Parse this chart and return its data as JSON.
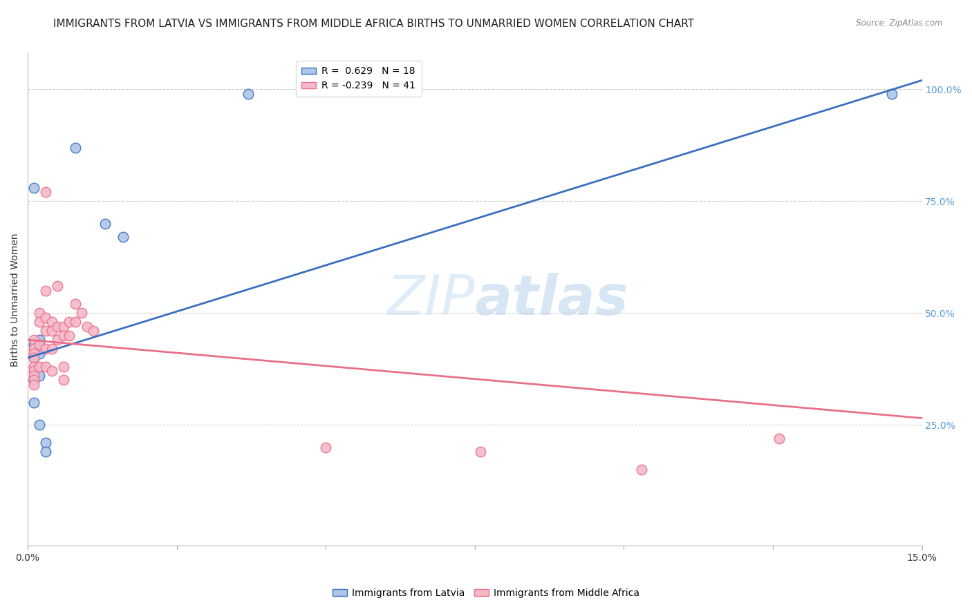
{
  "title": "IMMIGRANTS FROM LATVIA VS IMMIGRANTS FROM MIDDLE AFRICA BIRTHS TO UNMARRIED WOMEN CORRELATION CHART",
  "source": "Source: ZipAtlas.com",
  "ylabel": "Births to Unmarried Women",
  "xlim": [
    0.0,
    0.15
  ],
  "ylim": [
    -0.02,
    1.08
  ],
  "xticks": [
    0.0,
    0.025,
    0.05,
    0.075,
    0.1,
    0.125,
    0.15
  ],
  "xticklabels": [
    "0.0%",
    "",
    "",
    "",
    "",
    "",
    "15.0%"
  ],
  "yticks_grid": [
    0.25,
    0.5,
    0.75,
    1.0
  ],
  "right_ytick_labels": [
    "25.0%",
    "50.0%",
    "75.0%",
    "100.0%"
  ],
  "legend_blue_label": "Immigrants from Latvia",
  "legend_pink_label": "Immigrants from Middle Africa",
  "r_blue": 0.629,
  "n_blue": 18,
  "r_pink": -0.239,
  "n_pink": 41,
  "blue_color": "#aec6e8",
  "pink_color": "#f4b8c8",
  "blue_line_color": "#3a6fbf",
  "pink_line_color": "#e8708a",
  "blue_scatter_x": [
    0.008,
    0.013,
    0.016,
    0.001,
    0.001,
    0.001,
    0.001,
    0.001,
    0.001,
    0.002,
    0.002,
    0.002,
    0.002,
    0.002,
    0.003,
    0.003,
    0.037,
    0.145
  ],
  "blue_scatter_y": [
    0.87,
    0.7,
    0.67,
    0.78,
    0.43,
    0.4,
    0.35,
    0.35,
    0.3,
    0.44,
    0.43,
    0.41,
    0.36,
    0.25,
    0.21,
    0.19,
    0.99,
    0.99
  ],
  "pink_scatter_x": [
    0.001,
    0.001,
    0.001,
    0.001,
    0.001,
    0.001,
    0.001,
    0.001,
    0.001,
    0.002,
    0.002,
    0.002,
    0.002,
    0.003,
    0.003,
    0.003,
    0.003,
    0.003,
    0.003,
    0.004,
    0.004,
    0.004,
    0.004,
    0.005,
    0.005,
    0.005,
    0.006,
    0.006,
    0.006,
    0.006,
    0.007,
    0.007,
    0.008,
    0.008,
    0.009,
    0.01,
    0.011,
    0.05,
    0.076,
    0.103,
    0.126
  ],
  "pink_scatter_y": [
    0.44,
    0.42,
    0.41,
    0.4,
    0.38,
    0.37,
    0.36,
    0.35,
    0.34,
    0.5,
    0.48,
    0.43,
    0.38,
    0.77,
    0.55,
    0.49,
    0.46,
    0.42,
    0.38,
    0.48,
    0.46,
    0.42,
    0.37,
    0.56,
    0.47,
    0.44,
    0.47,
    0.45,
    0.38,
    0.35,
    0.48,
    0.45,
    0.52,
    0.48,
    0.5,
    0.47,
    0.46,
    0.2,
    0.19,
    0.15,
    0.22
  ],
  "blue_line_x": [
    0.0,
    0.15
  ],
  "blue_line_y": [
    0.4,
    1.02
  ],
  "pink_line_x": [
    0.0,
    0.15
  ],
  "pink_line_y": [
    0.44,
    0.265
  ],
  "watermark_zip": "ZIP",
  "watermark_atlas": "atlas",
  "background_color": "#ffffff",
  "grid_color": "#cccccc",
  "title_fontsize": 11,
  "axis_label_fontsize": 10,
  "tick_fontsize": 10,
  "legend_fontsize": 10,
  "right_ytick_color": "#5b9bd5",
  "scatter_size": 110
}
